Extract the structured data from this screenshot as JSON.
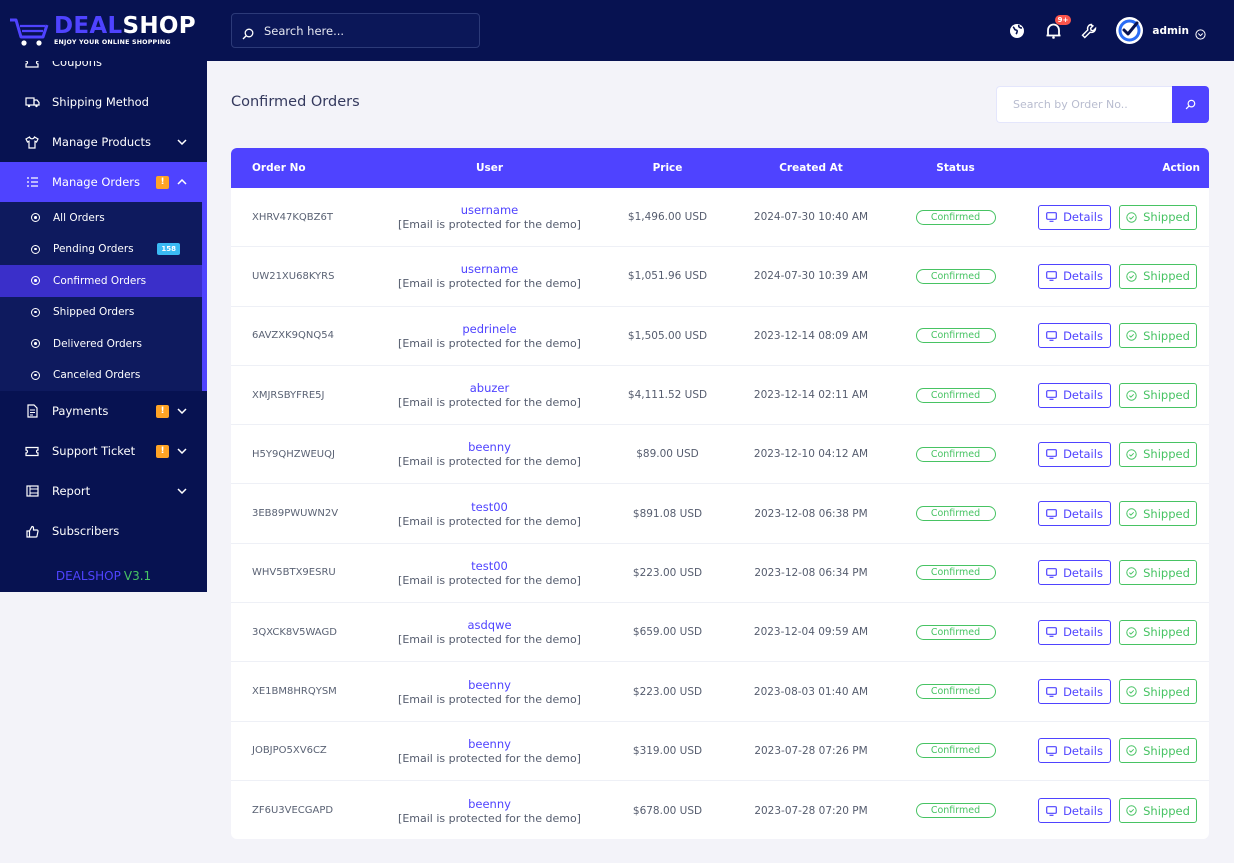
{
  "brand": {
    "name_part1": "DEAL",
    "name_part2": "SHOP",
    "tagline": "ENJOY YOUR ONLINE SHOPPING",
    "version_name": "DEALSHOP",
    "version_number": "V3.1",
    "accent_color": "#4f43ff",
    "nav_bg": "#071251"
  },
  "topbar": {
    "search_placeholder": "Search here...",
    "notifications_badge": "9+",
    "admin_name": "admin"
  },
  "sidebar": {
    "items": [
      {
        "label": "Coupons",
        "icon": "coupon-icon"
      },
      {
        "label": "Shipping Method",
        "icon": "truck-icon"
      },
      {
        "label": "Manage Products",
        "icon": "shirt-icon"
      },
      {
        "label": "Manage Orders",
        "icon": "list-icon"
      },
      {
        "label": "Payments",
        "icon": "invoice-icon"
      },
      {
        "label": "Support Ticket",
        "icon": "ticket-icon"
      },
      {
        "label": "Report",
        "icon": "report-icon"
      },
      {
        "label": "Subscribers",
        "icon": "thumbs-up-icon"
      }
    ],
    "orders_submenu": [
      {
        "label": "All Orders"
      },
      {
        "label": "Pending Orders",
        "badge": "158"
      },
      {
        "label": "Confirmed Orders"
      },
      {
        "label": "Shipped Orders"
      },
      {
        "label": "Delivered Orders"
      },
      {
        "label": "Canceled Orders"
      }
    ],
    "warning_glyph": "!"
  },
  "main": {
    "title": "Confirmed Orders",
    "order_search_placeholder": "Search by Order No.."
  },
  "table": {
    "headers": {
      "order_no": "Order No",
      "user": "User",
      "price": "Price",
      "created_at": "Created At",
      "status": "Status",
      "action": "Action"
    },
    "details_label": "Details",
    "shipped_label": "Shipped",
    "rows": [
      {
        "order_no": "XHRV47KQBZ6T",
        "user": "username",
        "email": "[Email is protected for the demo]",
        "price": "$1,496.00 USD",
        "created": "2024-07-30 10:40 AM",
        "status": "Confirmed"
      },
      {
        "order_no": "UW21XU68KYRS",
        "user": "username",
        "email": "[Email is protected for the demo]",
        "price": "$1,051.96 USD",
        "created": "2024-07-30 10:39 AM",
        "status": "Confirmed"
      },
      {
        "order_no": "6AVZXK9QNQ54",
        "user": "pedrinele",
        "email": "[Email is protected for the demo]",
        "price": "$1,505.00 USD",
        "created": "2023-12-14 08:09 AM",
        "status": "Confirmed"
      },
      {
        "order_no": "XMJRSBYFRE5J",
        "user": "abuzer",
        "email": "[Email is protected for the demo]",
        "price": "$4,111.52 USD",
        "created": "2023-12-14 02:11 AM",
        "status": "Confirmed"
      },
      {
        "order_no": "H5Y9QHZWEUQJ",
        "user": "beenny",
        "email": "[Email is protected for the demo]",
        "price": "$89.00 USD",
        "created": "2023-12-10 04:12 AM",
        "status": "Confirmed"
      },
      {
        "order_no": "3EB89PWUWN2V",
        "user": "test00",
        "email": "[Email is protected for the demo]",
        "price": "$891.08 USD",
        "created": "2023-12-08 06:38 PM",
        "status": "Confirmed"
      },
      {
        "order_no": "WHV5BTX9ESRU",
        "user": "test00",
        "email": "[Email is protected for the demo]",
        "price": "$223.00 USD",
        "created": "2023-12-08 06:34 PM",
        "status": "Confirmed"
      },
      {
        "order_no": "3QXCK8V5WAGD",
        "user": "asdqwe",
        "email": "[Email is protected for the demo]",
        "price": "$659.00 USD",
        "created": "2023-12-04 09:59 AM",
        "status": "Confirmed"
      },
      {
        "order_no": "XE1BM8HRQYSM",
        "user": "beenny",
        "email": "[Email is protected for the demo]",
        "price": "$223.00 USD",
        "created": "2023-08-03 01:40 AM",
        "status": "Confirmed"
      },
      {
        "order_no": "JOBJPO5XV6CZ",
        "user": "beenny",
        "email": "[Email is protected for the demo]",
        "price": "$319.00 USD",
        "created": "2023-07-28 07:26 PM",
        "status": "Confirmed"
      },
      {
        "order_no": "ZF6U3VECGAPD",
        "user": "beenny",
        "email": "[Email is protected for the demo]",
        "price": "$678.00 USD",
        "created": "2023-07-28 07:20 PM",
        "status": "Confirmed"
      }
    ]
  }
}
